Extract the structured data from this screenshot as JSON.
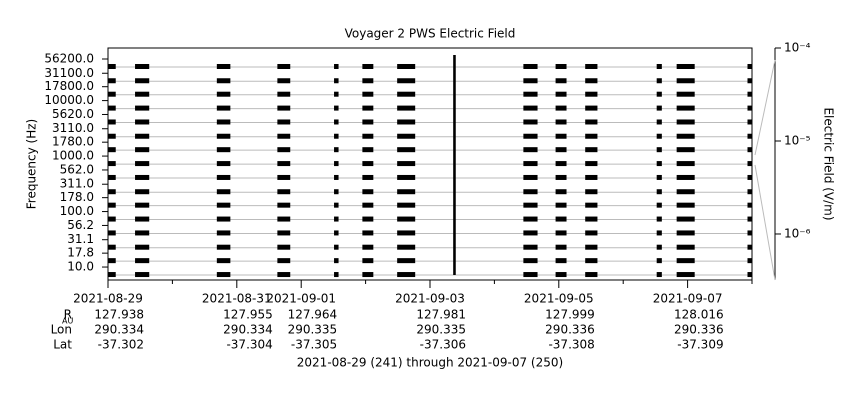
{
  "chart_data": {
    "type": "strip",
    "title": "Voyager 2 PWS Electric Field",
    "y_label": "Frequency (Hz)",
    "y2_label": "Electric Field (V/m)",
    "footer": "2021-08-29 (241) through 2021-09-07 (250)",
    "log_y": true,
    "ylim": [
      5.84,
      88700
    ],
    "yticks": [
      {
        "value": 56200,
        "label": "56200.0"
      },
      {
        "value": 31100,
        "label": "31100.0"
      },
      {
        "value": 17800,
        "label": "17800.0"
      },
      {
        "value": 10000,
        "label": "10000.0"
      },
      {
        "value": 5620,
        "label": "5620.0"
      },
      {
        "value": 3110,
        "label": "3110.0"
      },
      {
        "value": 1780,
        "label": "1780.0"
      },
      {
        "value": 1000,
        "label": "1000.0"
      },
      {
        "value": 562,
        "label": "562.0"
      },
      {
        "value": 311,
        "label": "311.0"
      },
      {
        "value": 178,
        "label": "178.0"
      },
      {
        "value": 100,
        "label": "100.0"
      },
      {
        "value": 56.2,
        "label": "56.2"
      },
      {
        "value": 31.1,
        "label": "31.1"
      },
      {
        "value": 17.8,
        "label": "17.8"
      },
      {
        "value": 10,
        "label": "10.0"
      }
    ],
    "xlim": [
      241,
      251
    ],
    "xticks": [
      {
        "value": 241,
        "label": "2021-08-29"
      },
      {
        "value": 243,
        "label": "2021-08-31"
      },
      {
        "value": 244,
        "label": "2021-09-01"
      },
      {
        "value": 246,
        "label": "2021-09-03"
      },
      {
        "value": 248,
        "label": "2021-09-05"
      },
      {
        "value": 250,
        "label": "2021-09-07"
      }
    ],
    "xminor": [
      242,
      245,
      247,
      249,
      251
    ],
    "y2_log": true,
    "y2lim": [
      0.0001,
      3.2e-07
    ],
    "y2ticks": [
      {
        "value": 0.0001,
        "label": "10⁻⁴"
      },
      {
        "value": 1e-05,
        "label": "10⁻⁵"
      },
      {
        "value": 1e-06,
        "label": "10⁻⁶"
      }
    ],
    "color": "#000000",
    "bursts": [
      [
        241.0,
        241.12
      ],
      [
        241.42,
        241.64
      ],
      [
        242.69,
        242.9
      ],
      [
        243.63,
        243.83
      ],
      [
        244.51,
        244.58
      ],
      [
        244.95,
        245.12
      ],
      [
        245.49,
        245.77
      ],
      [
        247.45,
        247.67
      ],
      [
        247.95,
        248.12
      ],
      [
        248.41,
        248.6
      ],
      [
        249.52,
        249.6
      ],
      [
        249.83,
        250.11
      ],
      [
        250.93,
        251.0
      ]
    ],
    "spikes": [
      [
        246.36,
        246.4
      ]
    ],
    "ephemeris": [
      {
        "label": "R",
        "sub": "AU",
        "values": [
          127.938,
          127.955,
          127.964,
          127.981,
          127.999,
          128.016
        ]
      },
      {
        "label": "Lon",
        "values": [
          290.334,
          290.334,
          290.335,
          290.335,
          290.336,
          290.336
        ]
      },
      {
        "label": "Lat",
        "values": [
          -37.302,
          -37.304,
          -37.305,
          -37.306,
          -37.308,
          -37.309
        ]
      }
    ]
  }
}
